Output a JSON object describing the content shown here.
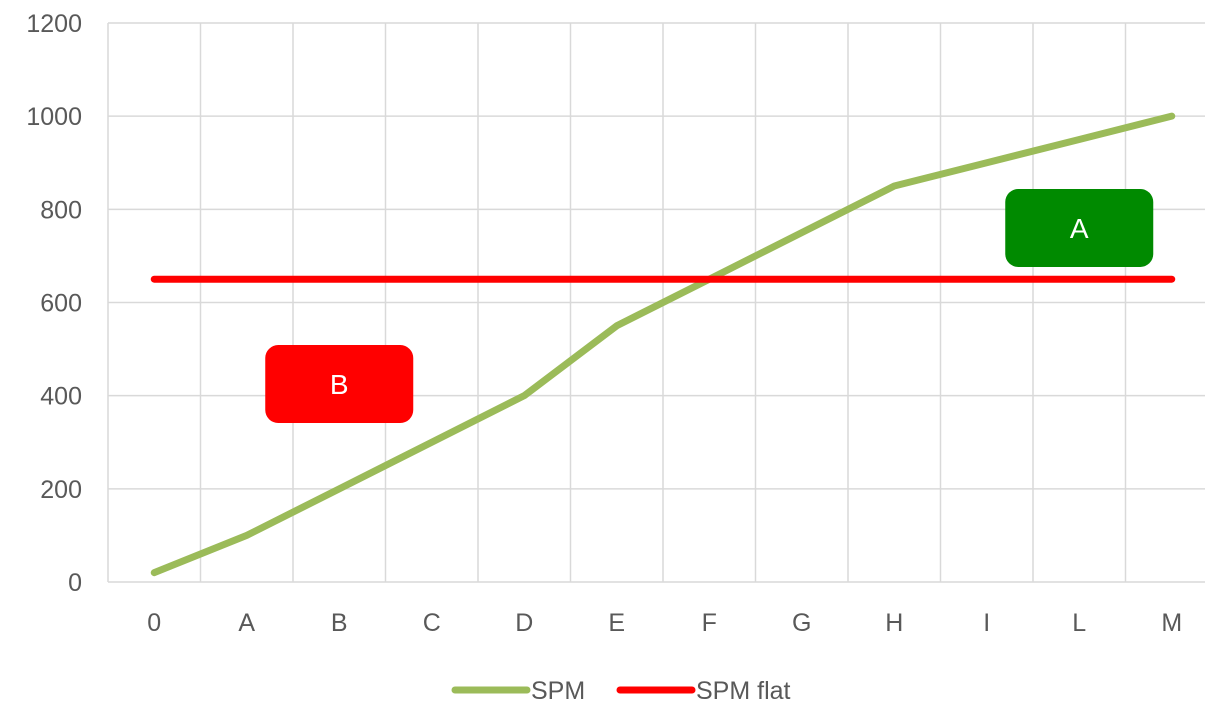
{
  "chart_data": {
    "type": "line",
    "title": "",
    "xlabel": "",
    "ylabel": "",
    "categories": [
      "0",
      "A",
      "B",
      "C",
      "D",
      "E",
      "F",
      "G",
      "H",
      "I",
      "L",
      "M"
    ],
    "ylim": [
      0,
      1200
    ],
    "yticks": [
      0,
      200,
      400,
      600,
      800,
      1000,
      1200
    ],
    "grid": true,
    "legend_position": "bottom",
    "series": [
      {
        "name": "SPM",
        "color": "#9BBB59",
        "values": [
          20,
          100,
          200,
          300,
          400,
          550,
          650,
          750,
          850,
          900,
          950,
          1000
        ]
      },
      {
        "name": "SPM flat",
        "color": "#FF0000",
        "values": [
          650,
          650,
          650,
          650,
          650,
          650,
          650,
          650,
          650,
          650,
          650,
          650
        ]
      }
    ],
    "annotations": [
      {
        "label": "A",
        "color": "#008A00",
        "category": "L",
        "y": 760
      },
      {
        "label": "B",
        "color": "#FF0000",
        "category": "B",
        "y": 425
      }
    ]
  }
}
